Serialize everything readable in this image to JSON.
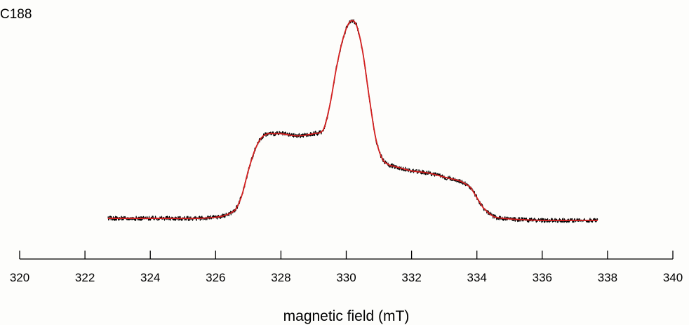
{
  "panel_label": "C188",
  "colors": {
    "experimental": "#000000",
    "fit": "#d42020",
    "axis": "#000000"
  },
  "chart_data": {
    "type": "line",
    "title": "",
    "xlabel": "magnetic field (mT)",
    "ylabel": "",
    "xlim": [
      320,
      340
    ],
    "ylim": [
      0,
      1.0
    ],
    "y_axis_shown": false,
    "grid": false,
    "xticks": [
      320,
      322,
      324,
      326,
      328,
      330,
      332,
      334,
      336,
      338,
      340
    ],
    "xtick_labels": [
      "320",
      "322",
      "324",
      "326",
      "328",
      "330",
      "332",
      "334",
      "336",
      "338",
      "340"
    ],
    "series": [
      {
        "style": "experimental (noisy)",
        "color": "#000000",
        "x": [
          322.7,
          323.5,
          324.5,
          325.5,
          326.2,
          326.6,
          326.8,
          327.0,
          327.2,
          327.4,
          327.6,
          327.8,
          328.0,
          328.5,
          329.0,
          329.3,
          329.5,
          329.7,
          329.9,
          330.1,
          330.3,
          330.5,
          330.7,
          330.9,
          331.1,
          331.3,
          331.5,
          332.0,
          332.5,
          333.0,
          333.5,
          333.8,
          334.0,
          334.2,
          334.5,
          334.8,
          335.2,
          336.0,
          337.0,
          337.7
        ],
        "y": [
          0.01,
          0.01,
          0.01,
          0.01,
          0.02,
          0.05,
          0.12,
          0.24,
          0.34,
          0.4,
          0.42,
          0.42,
          0.42,
          0.41,
          0.42,
          0.44,
          0.56,
          0.74,
          0.88,
          0.96,
          0.95,
          0.82,
          0.6,
          0.4,
          0.3,
          0.27,
          0.26,
          0.24,
          0.23,
          0.21,
          0.19,
          0.16,
          0.11,
          0.06,
          0.02,
          0.01,
          0.005,
          0.0,
          0.0,
          0.0
        ]
      },
      {
        "style": "simulation (smooth)",
        "color": "#d42020",
        "x": [
          322.7,
          323.5,
          324.5,
          325.5,
          326.2,
          326.6,
          326.8,
          327.0,
          327.2,
          327.4,
          327.6,
          327.8,
          328.0,
          328.5,
          329.0,
          329.3,
          329.5,
          329.7,
          329.9,
          330.1,
          330.3,
          330.5,
          330.7,
          330.9,
          331.1,
          331.3,
          331.5,
          332.0,
          332.5,
          333.0,
          333.5,
          333.8,
          334.0,
          334.2,
          334.5,
          334.8,
          335.2,
          336.0,
          337.0,
          337.7
        ],
        "y": [
          0.01,
          0.01,
          0.01,
          0.01,
          0.02,
          0.05,
          0.12,
          0.24,
          0.34,
          0.4,
          0.42,
          0.42,
          0.42,
          0.41,
          0.42,
          0.44,
          0.56,
          0.74,
          0.88,
          0.96,
          0.95,
          0.82,
          0.6,
          0.4,
          0.3,
          0.27,
          0.26,
          0.24,
          0.23,
          0.21,
          0.19,
          0.16,
          0.11,
          0.06,
          0.02,
          0.01,
          0.005,
          0.0,
          0.0,
          0.0
        ]
      }
    ]
  }
}
